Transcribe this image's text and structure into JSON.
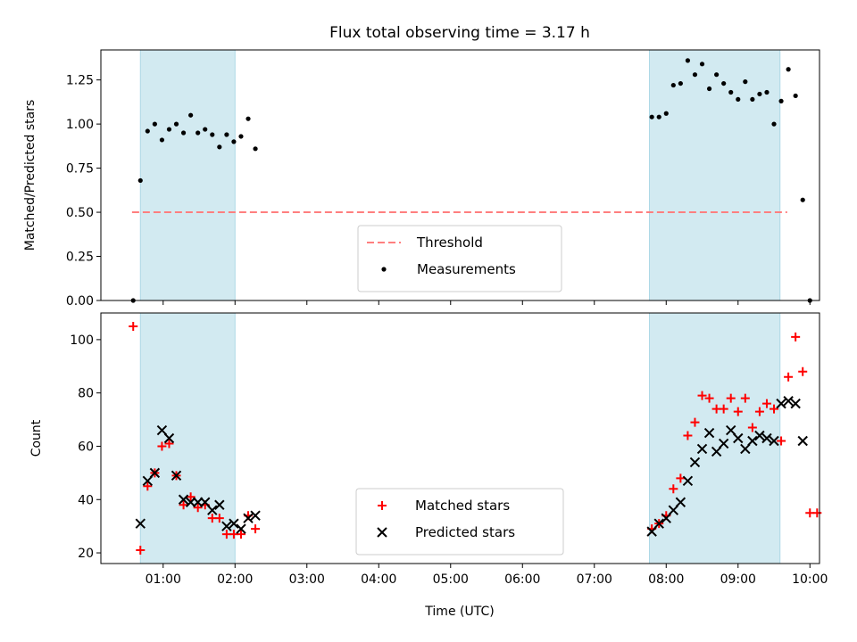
{
  "chart_data": {
    "type": "scatter",
    "title": "Flux total observing time = 3.17 h",
    "xlabel": "Time (UTC)",
    "x_ticks": [
      "01:00",
      "02:00",
      "03:00",
      "04:00",
      "05:00",
      "06:00",
      "07:00",
      "08:00",
      "09:00",
      "10:00"
    ],
    "xlim": [
      "00:08",
      "10:08"
    ],
    "shaded_intervals": [
      [
        "00:41",
        "02:00"
      ],
      [
        "07:46",
        "09:35"
      ]
    ],
    "shade_color": "#add8e6",
    "panels": [
      {
        "ylabel": "Matched/Predicted stars",
        "ylim": [
          0,
          1.42
        ],
        "y_ticks": [
          "0.00",
          "0.25",
          "0.50",
          "0.75",
          "1.00",
          "1.25"
        ],
        "legend_placement": "lower center",
        "threshold": {
          "name": "Threshold",
          "y": 0.5,
          "x_range": [
            "00:34",
            "09:41"
          ],
          "color": "#ff7f7f"
        },
        "series": [
          {
            "name": "Measurements",
            "marker": "dot",
            "color": "#000000",
            "points": [
              [
                "00:35",
                0.0
              ],
              [
                "00:41",
                0.68
              ],
              [
                "00:47",
                0.96
              ],
              [
                "00:53",
                1.0
              ],
              [
                "00:59",
                0.91
              ],
              [
                "01:05",
                0.97
              ],
              [
                "01:11",
                1.0
              ],
              [
                "01:17",
                0.95
              ],
              [
                "01:23",
                1.05
              ],
              [
                "01:29",
                0.95
              ],
              [
                "01:35",
                0.97
              ],
              [
                "01:41",
                0.94
              ],
              [
                "01:47",
                0.87
              ],
              [
                "01:53",
                0.94
              ],
              [
                "01:59",
                0.9
              ],
              [
                "02:05",
                0.93
              ],
              [
                "02:11",
                1.03
              ],
              [
                "02:17",
                0.86
              ],
              [
                "07:48",
                1.04
              ],
              [
                "07:54",
                1.04
              ],
              [
                "08:00",
                1.06
              ],
              [
                "08:06",
                1.22
              ],
              [
                "08:12",
                1.23
              ],
              [
                "08:18",
                1.36
              ],
              [
                "08:24",
                1.28
              ],
              [
                "08:30",
                1.34
              ],
              [
                "08:36",
                1.2
              ],
              [
                "08:42",
                1.28
              ],
              [
                "08:48",
                1.23
              ],
              [
                "08:54",
                1.18
              ],
              [
                "09:00",
                1.14
              ],
              [
                "09:06",
                1.24
              ],
              [
                "09:12",
                1.14
              ],
              [
                "09:18",
                1.17
              ],
              [
                "09:24",
                1.18
              ],
              [
                "09:30",
                1.0
              ],
              [
                "09:36",
                1.13
              ],
              [
                "09:42",
                1.31
              ],
              [
                "09:48",
                1.16
              ],
              [
                "09:54",
                0.57
              ],
              [
                "10:00",
                0.0
              ]
            ]
          }
        ]
      },
      {
        "ylabel": "Count",
        "ylim": [
          16,
          110
        ],
        "y_ticks": [
          "20",
          "40",
          "60",
          "80",
          "100"
        ],
        "legend_placement": "lower center",
        "series": [
          {
            "name": "Matched stars",
            "marker": "plus",
            "color": "#ff0000",
            "points": [
              [
                "00:35",
                105
              ],
              [
                "00:41",
                21
              ],
              [
                "00:47",
                45
              ],
              [
                "00:53",
                50
              ],
              [
                "00:59",
                60
              ],
              [
                "01:05",
                61
              ],
              [
                "01:11",
                49
              ],
              [
                "01:17",
                38
              ],
              [
                "01:23",
                41
              ],
              [
                "01:29",
                37
              ],
              [
                "01:35",
                38
              ],
              [
                "01:41",
                33
              ],
              [
                "01:47",
                33
              ],
              [
                "01:53",
                27
              ],
              [
                "01:59",
                27
              ],
              [
                "02:05",
                27
              ],
              [
                "02:11",
                34
              ],
              [
                "02:17",
                29
              ],
              [
                "07:48",
                29
              ],
              [
                "07:54",
                31
              ],
              [
                "08:00",
                34
              ],
              [
                "08:06",
                44
              ],
              [
                "08:12",
                48
              ],
              [
                "08:18",
                64
              ],
              [
                "08:24",
                69
              ],
              [
                "08:30",
                79
              ],
              [
                "08:36",
                78
              ],
              [
                "08:42",
                74
              ],
              [
                "08:48",
                74
              ],
              [
                "08:54",
                78
              ],
              [
                "09:00",
                73
              ],
              [
                "09:06",
                78
              ],
              [
                "09:12",
                67
              ],
              [
                "09:18",
                73
              ],
              [
                "09:24",
                76
              ],
              [
                "09:30",
                74
              ],
              [
                "09:36",
                62
              ],
              [
                "09:42",
                86
              ],
              [
                "09:48",
                101
              ],
              [
                "09:54",
                88
              ],
              [
                "10:00",
                35
              ],
              [
                "10:06",
                35
              ]
            ]
          },
          {
            "name": "Predicted stars",
            "marker": "x",
            "color": "#000000",
            "points": [
              [
                "00:41",
                31
              ],
              [
                "00:47",
                47
              ],
              [
                "00:53",
                50
              ],
              [
                "00:59",
                66
              ],
              [
                "01:05",
                63
              ],
              [
                "01:11",
                49
              ],
              [
                "01:17",
                40
              ],
              [
                "01:23",
                39
              ],
              [
                "01:29",
                39
              ],
              [
                "01:35",
                39
              ],
              [
                "01:41",
                36
              ],
              [
                "01:47",
                38
              ],
              [
                "01:53",
                30
              ],
              [
                "01:59",
                31
              ],
              [
                "02:05",
                29
              ],
              [
                "02:11",
                33
              ],
              [
                "02:17",
                34
              ],
              [
                "07:48",
                28
              ],
              [
                "07:54",
                31
              ],
              [
                "08:00",
                33
              ],
              [
                "08:06",
                36
              ],
              [
                "08:12",
                39
              ],
              [
                "08:18",
                47
              ],
              [
                "08:24",
                54
              ],
              [
                "08:30",
                59
              ],
              [
                "08:36",
                65
              ],
              [
                "08:42",
                58
              ],
              [
                "08:48",
                61
              ],
              [
                "08:54",
                66
              ],
              [
                "09:00",
                63
              ],
              [
                "09:06",
                59
              ],
              [
                "09:12",
                62
              ],
              [
                "09:18",
                64
              ],
              [
                "09:24",
                63
              ],
              [
                "09:30",
                62
              ],
              [
                "09:36",
                76
              ],
              [
                "09:42",
                77
              ],
              [
                "09:48",
                76
              ],
              [
                "09:54",
                62
              ]
            ]
          }
        ]
      }
    ]
  }
}
